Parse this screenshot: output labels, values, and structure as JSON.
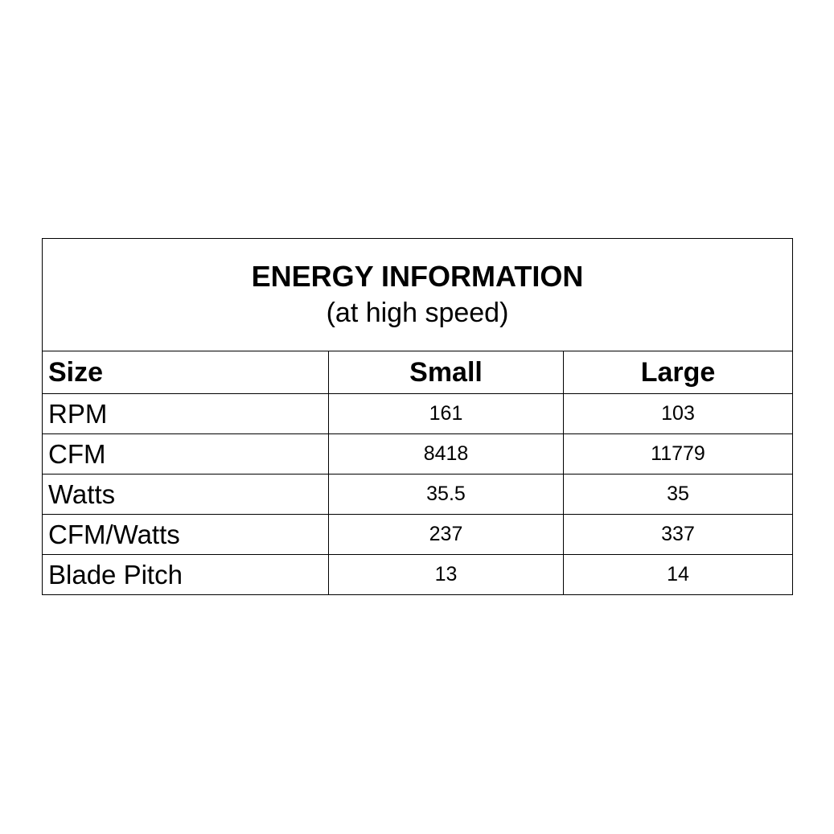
{
  "title": "ENERGY INFORMATION",
  "subtitle": "(at high speed)",
  "table": {
    "header": [
      "Size",
      "Small",
      "Large"
    ],
    "rows": [
      [
        "RPM",
        161,
        103
      ],
      [
        "CFM",
        8418,
        11779
      ],
      [
        "Watts",
        35.5,
        35
      ],
      [
        "CFM/Watts",
        237,
        337
      ],
      [
        "Blade Pitch",
        13,
        14
      ]
    ]
  }
}
